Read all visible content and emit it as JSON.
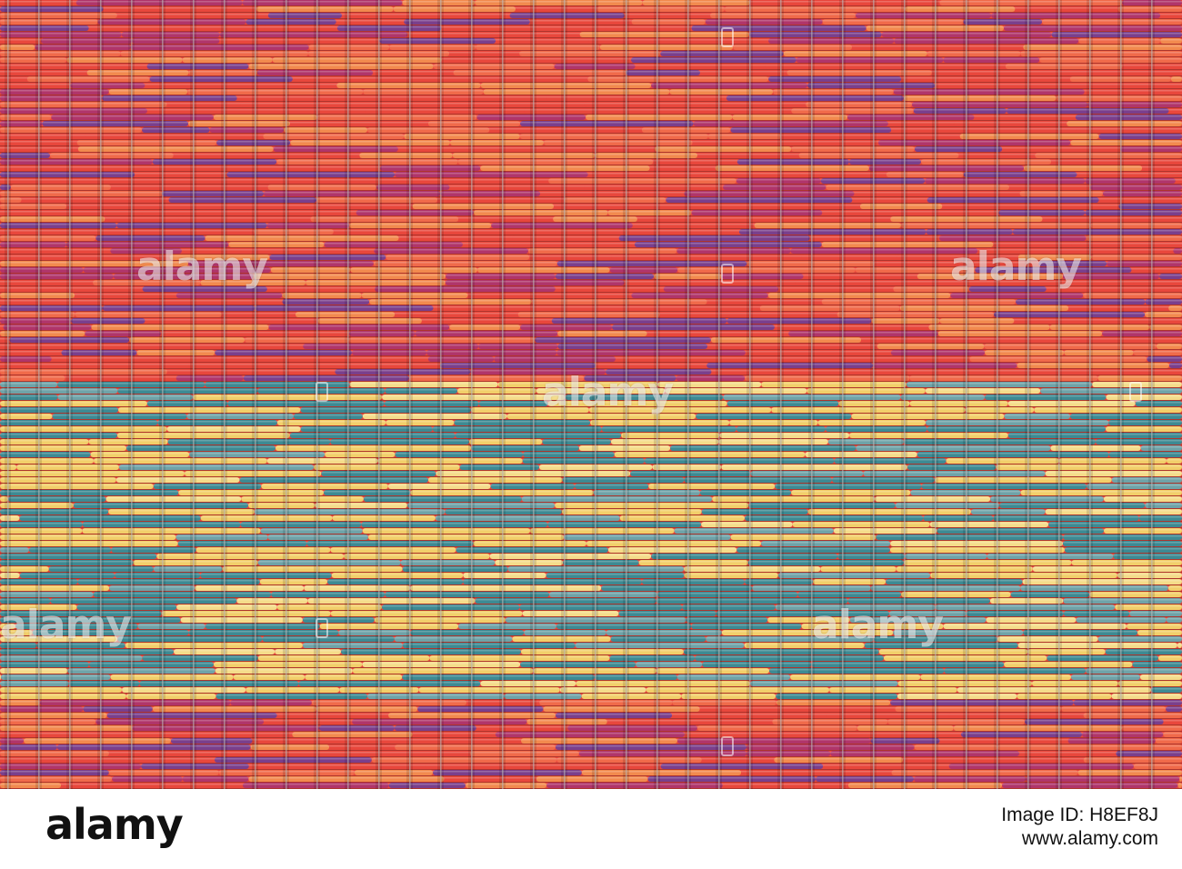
{
  "image": {
    "subject": "woven-straw-mat-texture",
    "palette": {
      "red": "#e8473c",
      "coral": "#f06a4a",
      "orange": "#f28a4e",
      "purple": "#7a3f8c",
      "magenta": "#b0356a",
      "yellow": "#f2cf6a",
      "pale_yellow": "#f5dc8a",
      "teal": "#3d8a93",
      "blue_grey": "#6fa3a8",
      "warp_thread": "#d8d8d8"
    },
    "watermark_text": "alamy"
  },
  "footer": {
    "logo": "alamy",
    "image_id": "Image ID: H8EF8J",
    "url": "www.alamy.com"
  }
}
